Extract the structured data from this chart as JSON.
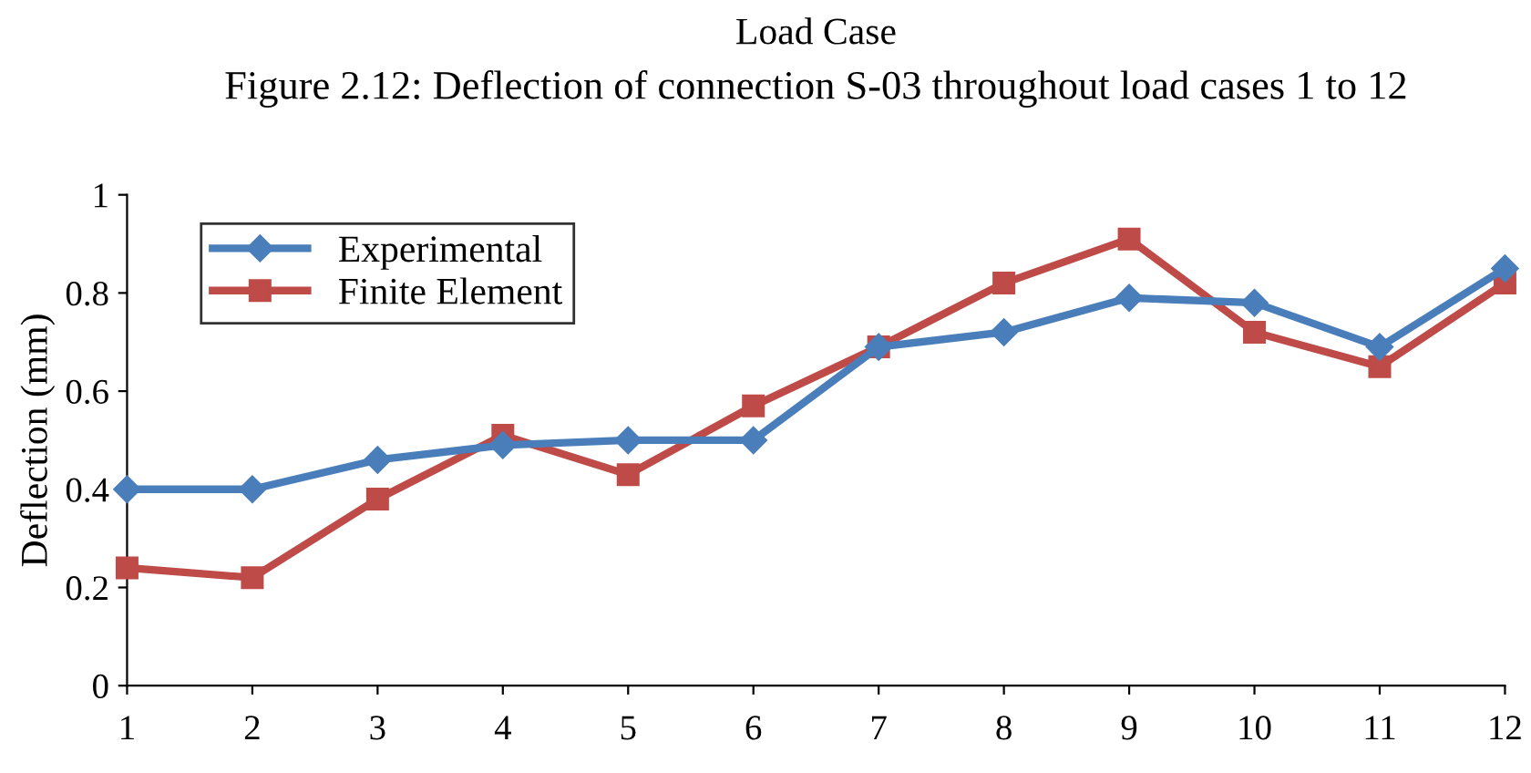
{
  "chart_data": {
    "type": "line",
    "ylabel": "Deflection (mm)",
    "annotations": [
      "Load Case",
      "Figure 2.12: Deflection of connection S-03 throughout load cases 1 to 12"
    ],
    "x": [
      1,
      2,
      3,
      4,
      5,
      6,
      7,
      8,
      9,
      10,
      11,
      12
    ],
    "xlim": [
      1,
      12
    ],
    "xticks": [
      1,
      2,
      3,
      4,
      5,
      6,
      7,
      8,
      9,
      10,
      11,
      12
    ],
    "ylim": [
      0,
      1
    ],
    "yticks": [
      0,
      0.2,
      0.4,
      0.6,
      0.8,
      1
    ],
    "series": [
      {
        "name": "Experimental",
        "color": "#4a7ebb",
        "marker": "diamond",
        "values": [
          0.4,
          0.4,
          0.46,
          0.49,
          0.5,
          0.5,
          0.69,
          0.72,
          0.79,
          0.78,
          0.69,
          0.85
        ]
      },
      {
        "name": "Finite Element",
        "color": "#be4b48",
        "marker": "square",
        "values": [
          0.24,
          0.22,
          0.38,
          0.51,
          0.43,
          0.57,
          0.69,
          0.82,
          0.91,
          0.72,
          0.65,
          0.82
        ]
      }
    ],
    "legend": "top left",
    "grid": false
  }
}
